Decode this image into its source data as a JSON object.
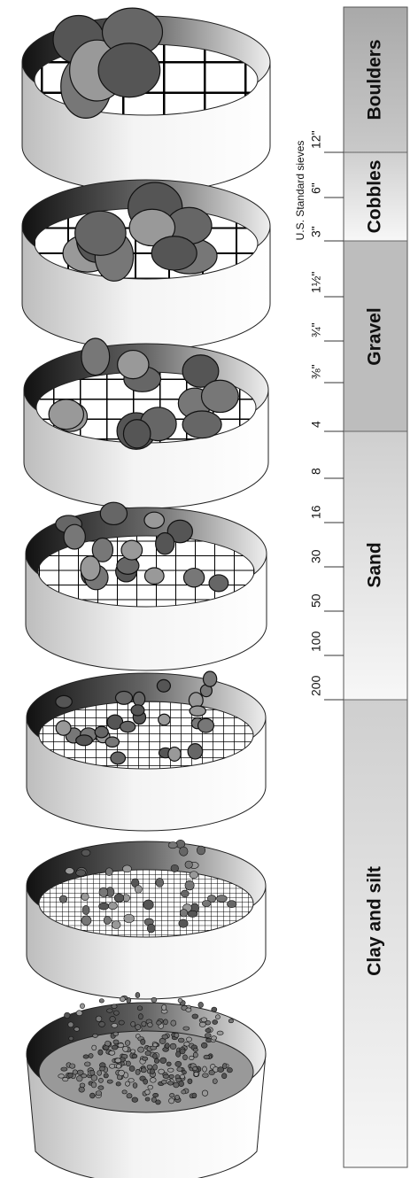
{
  "classes": [
    {
      "label": "Boulders"
    },
    {
      "label": "Cobbles"
    },
    {
      "label": "Gravel"
    },
    {
      "label": "Sand"
    },
    {
      "label": "Clay and silt"
    }
  ],
  "sieves": {
    "title": "U.S. Standard sieves",
    "labels": [
      "12\"",
      "6\"",
      "3\"",
      "1½\"",
      "¾\"",
      "⅜\"",
      "4",
      "8",
      "16",
      "30",
      "50",
      "100",
      "200"
    ]
  }
}
